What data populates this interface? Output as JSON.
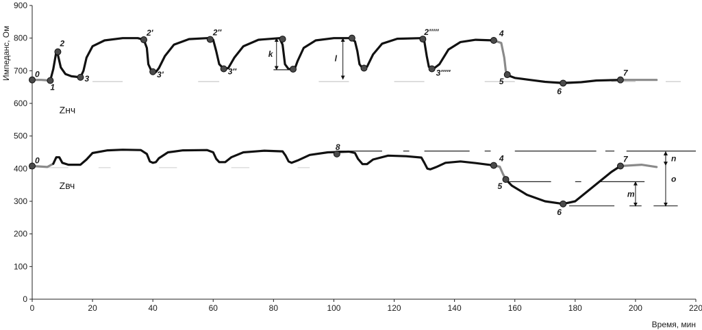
{
  "chart_data": {
    "type": "line",
    "xlabel": "Время, мин",
    "ylabel": "Импеданс, Ом",
    "xlim": [
      0,
      220
    ],
    "ylim": [
      0,
      900
    ],
    "xticks": [
      0,
      20,
      40,
      60,
      80,
      100,
      120,
      140,
      160,
      180,
      200,
      220
    ],
    "yticks": [
      0,
      100,
      200,
      300,
      400,
      500,
      600,
      700,
      800,
      900
    ],
    "grid": false,
    "series": [
      {
        "name": "Zнч",
        "points": [
          [
            0,
            672
          ],
          [
            3,
            672
          ],
          [
            6,
            670
          ],
          [
            7,
            705
          ],
          [
            8,
            758
          ],
          [
            8.5,
            750
          ],
          [
            9.5,
            710
          ],
          [
            11,
            690
          ],
          [
            13,
            683
          ],
          [
            16,
            680
          ],
          [
            17,
            700
          ],
          [
            18,
            740
          ],
          [
            20,
            775
          ],
          [
            24,
            793
          ],
          [
            30,
            800
          ],
          [
            35,
            800
          ],
          [
            37,
            795
          ],
          [
            38,
            770
          ],
          [
            38.5,
            720
          ],
          [
            39.5,
            700
          ],
          [
            41,
            696
          ],
          [
            42,
            708
          ],
          [
            44,
            745
          ],
          [
            47,
            780
          ],
          [
            52,
            797
          ],
          [
            58,
            800
          ],
          [
            60,
            795
          ],
          [
            61,
            760
          ],
          [
            62,
            720
          ],
          [
            63.5,
            706
          ],
          [
            65,
            708
          ],
          [
            67,
            740
          ],
          [
            70,
            775
          ],
          [
            75,
            795
          ],
          [
            82,
            800
          ],
          [
            83,
            780
          ],
          [
            83.8,
            720
          ],
          [
            85,
            705
          ],
          [
            87,
            705
          ],
          [
            88,
            730
          ],
          [
            90,
            770
          ],
          [
            94,
            793
          ],
          [
            100,
            800
          ],
          [
            105,
            800
          ],
          [
            107,
            790
          ],
          [
            107.8,
            760
          ],
          [
            108.5,
            720
          ],
          [
            109.5,
            708
          ],
          [
            111,
            712
          ],
          [
            113,
            750
          ],
          [
            116,
            783
          ],
          [
            121,
            798
          ],
          [
            129,
            800
          ],
          [
            130,
            790
          ],
          [
            130.8,
            745
          ],
          [
            131.5,
            712
          ],
          [
            133,
            706
          ],
          [
            135,
            720
          ],
          [
            138,
            765
          ],
          [
            142,
            788
          ],
          [
            147,
            795
          ],
          [
            153,
            793
          ],
          [
            155.5,
            785
          ],
          [
            156.5,
            740
          ],
          [
            157,
            700
          ],
          [
            158,
            685
          ],
          [
            160,
            678
          ],
          [
            165,
            672
          ],
          [
            170,
            666
          ],
          [
            176,
            662
          ],
          [
            182,
            665
          ],
          [
            187,
            670
          ],
          [
            195,
            672
          ],
          [
            207,
            672
          ]
        ],
        "gray_ranges": [
          [
            0,
            6
          ],
          [
            153,
            157.5
          ],
          [
            195,
            207
          ]
        ]
      },
      {
        "name": "Zвч",
        "points": [
          [
            0,
            408
          ],
          [
            5,
            405
          ],
          [
            7,
            415
          ],
          [
            8,
            435
          ],
          [
            9,
            435
          ],
          [
            10,
            418
          ],
          [
            12,
            412
          ],
          [
            16,
            412
          ],
          [
            18,
            428
          ],
          [
            20,
            448
          ],
          [
            25,
            456
          ],
          [
            30,
            458
          ],
          [
            36,
            457
          ],
          [
            38,
            445
          ],
          [
            39,
            422
          ],
          [
            40,
            418
          ],
          [
            41,
            420
          ],
          [
            42,
            432
          ],
          [
            45,
            450
          ],
          [
            50,
            456
          ],
          [
            58,
            457
          ],
          [
            60,
            450
          ],
          [
            61,
            430
          ],
          [
            62,
            420
          ],
          [
            64,
            420
          ],
          [
            66,
            435
          ],
          [
            70,
            450
          ],
          [
            77,
            455
          ],
          [
            83,
            453
          ],
          [
            84,
            440
          ],
          [
            85,
            422
          ],
          [
            86,
            418
          ],
          [
            88,
            425
          ],
          [
            92,
            442
          ],
          [
            98,
            450
          ],
          [
            105,
            452
          ],
          [
            107,
            448
          ],
          [
            108,
            430
          ],
          [
            109.5,
            414
          ],
          [
            111,
            414
          ],
          [
            113,
            428
          ],
          [
            118,
            440
          ],
          [
            124,
            438
          ],
          [
            129,
            434
          ],
          [
            130,
            418
          ],
          [
            131,
            400
          ],
          [
            132,
            398
          ],
          [
            134,
            405
          ],
          [
            137,
            418
          ],
          [
            142,
            422
          ],
          [
            147,
            417
          ],
          [
            153,
            410
          ],
          [
            155,
            406
          ],
          [
            156,
            385
          ],
          [
            157,
            367
          ],
          [
            159,
            348
          ],
          [
            164,
            320
          ],
          [
            170,
            300
          ],
          [
            176,
            292
          ],
          [
            180,
            300
          ],
          [
            184,
            330
          ],
          [
            188,
            360
          ],
          [
            192,
            390
          ],
          [
            195,
            408
          ],
          [
            202,
            412
          ],
          [
            207,
            405
          ]
        ],
        "gray_ranges": [
          [
            0,
            6
          ],
          [
            153,
            157.5
          ],
          [
            195,
            207
          ]
        ]
      }
    ],
    "markers": [
      {
        "series": "Zнч",
        "label": "0",
        "x": 0,
        "y": 672
      },
      {
        "series": "Zнч",
        "label": "1",
        "x": 6,
        "y": 670
      },
      {
        "series": "Zнч",
        "label": "2",
        "x": 8.5,
        "y": 758
      },
      {
        "series": "Zнч",
        "label": "3",
        "x": 16,
        "y": 680
      },
      {
        "series": "Zнч",
        "label": "2'",
        "x": 37,
        "y": 795
      },
      {
        "series": "Zнч",
        "label": "3'",
        "x": 40,
        "y": 697
      },
      {
        "series": "Zнч",
        "label": "2''",
        "x": 59,
        "y": 796
      },
      {
        "series": "Zнч",
        "label": "3''",
        "x": 63.5,
        "y": 706
      },
      {
        "series": "Zнч",
        "label": "",
        "x": 83,
        "y": 797
      },
      {
        "series": "Zнч",
        "label": "",
        "x": 86.5,
        "y": 705
      },
      {
        "series": "Zнч",
        "label": "",
        "x": 106,
        "y": 800
      },
      {
        "series": "Zнч",
        "label": "",
        "x": 110,
        "y": 708
      },
      {
        "series": "Zнч",
        "label": "2'''''",
        "x": 129.5,
        "y": 797
      },
      {
        "series": "Zнч",
        "label": "3'''''",
        "x": 132.5,
        "y": 706
      },
      {
        "series": "Zнч",
        "label": "4",
        "x": 153,
        "y": 793
      },
      {
        "series": "Zнч",
        "label": "5",
        "x": 157.5,
        "y": 688
      },
      {
        "series": "Zнч",
        "label": "6",
        "x": 176,
        "y": 662
      },
      {
        "series": "Zнч",
        "label": "7",
        "x": 195,
        "y": 672
      },
      {
        "series": "Zвч",
        "label": "0",
        "x": 0,
        "y": 408
      },
      {
        "series": "Zвч",
        "label": "8",
        "x": 101,
        "y": 445
      },
      {
        "series": "Zвч",
        "label": "4",
        "x": 153,
        "y": 410
      },
      {
        "series": "Zвч",
        "label": "5",
        "x": 157,
        "y": 367
      },
      {
        "series": "Zвч",
        "label": "6",
        "x": 176,
        "y": 292
      },
      {
        "series": "Zвч",
        "label": "7",
        "x": 195,
        "y": 408
      }
    ],
    "annotations": [
      {
        "label": "k",
        "x": 81,
        "y1": 800,
        "y2": 703
      },
      {
        "label": "l",
        "x": 103,
        "y1": 800,
        "y2": 674
      },
      {
        "label": "m",
        "x": 200,
        "y1": 360,
        "y2": 285
      },
      {
        "label": "n",
        "x": 210,
        "y1": 452,
        "y2": 410
      },
      {
        "label": "o",
        "x": 210,
        "y1": 452,
        "y2": 285
      }
    ],
    "series_labels": [
      {
        "text": "Zнч",
        "x": 9,
        "y": 570
      },
      {
        "text": "Zвч",
        "x": 9,
        "y": 338
      }
    ]
  }
}
